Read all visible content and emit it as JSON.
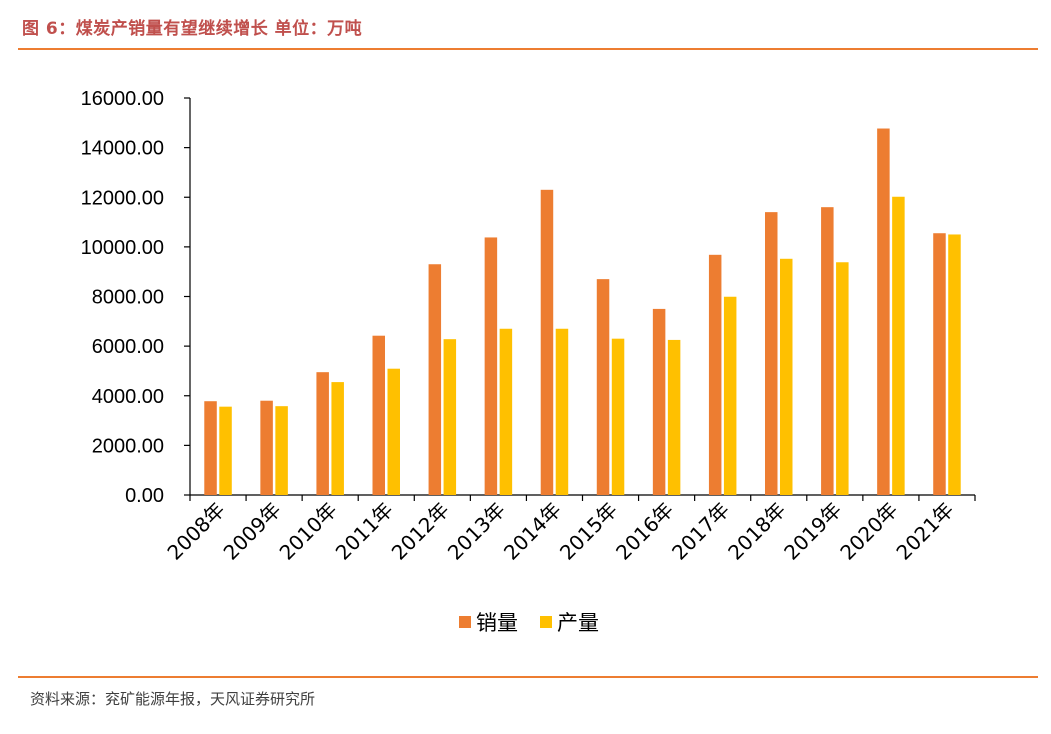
{
  "header": {
    "title": "图 6：煤炭产销量有望继续增长  单位：万吨"
  },
  "footer": {
    "source": "资料来源：兖矿能源年报，天风证券研究所"
  },
  "colors": {
    "accent_rule": "#ed7d31",
    "title_color": "#c0504d",
    "sales_series": "#ed7d31",
    "production_series": "#ffc000"
  },
  "chart_data": {
    "type": "bar",
    "categories": [
      "2008年",
      "2009年",
      "2010年",
      "2011年",
      "2012年",
      "2013年",
      "2014年",
      "2015年",
      "2016年",
      "2017年",
      "2018年",
      "2019年",
      "2020年",
      "2021年"
    ],
    "series": [
      {
        "name": "销量",
        "color": "#ed7d31",
        "values": [
          3780,
          3800,
          4950,
          6420,
          9300,
          10380,
          12300,
          8700,
          7500,
          9680,
          11400,
          11600,
          14770,
          10550
        ]
      },
      {
        "name": "产量",
        "color": "#ffc000",
        "values": [
          3560,
          3580,
          4550,
          5090,
          6280,
          6700,
          6700,
          6300,
          6250,
          7990,
          9520,
          9380,
          12020,
          10500
        ]
      }
    ],
    "yticks": [
      "0.00",
      "2000.00",
      "4000.00",
      "6000.00",
      "8000.00",
      "10000.00",
      "12000.00",
      "14000.00",
      "16000.00"
    ],
    "ylim": [
      0,
      16000
    ],
    "grid": false,
    "legend": {
      "position": "bottom",
      "labels": [
        "销量",
        "产量"
      ]
    }
  }
}
